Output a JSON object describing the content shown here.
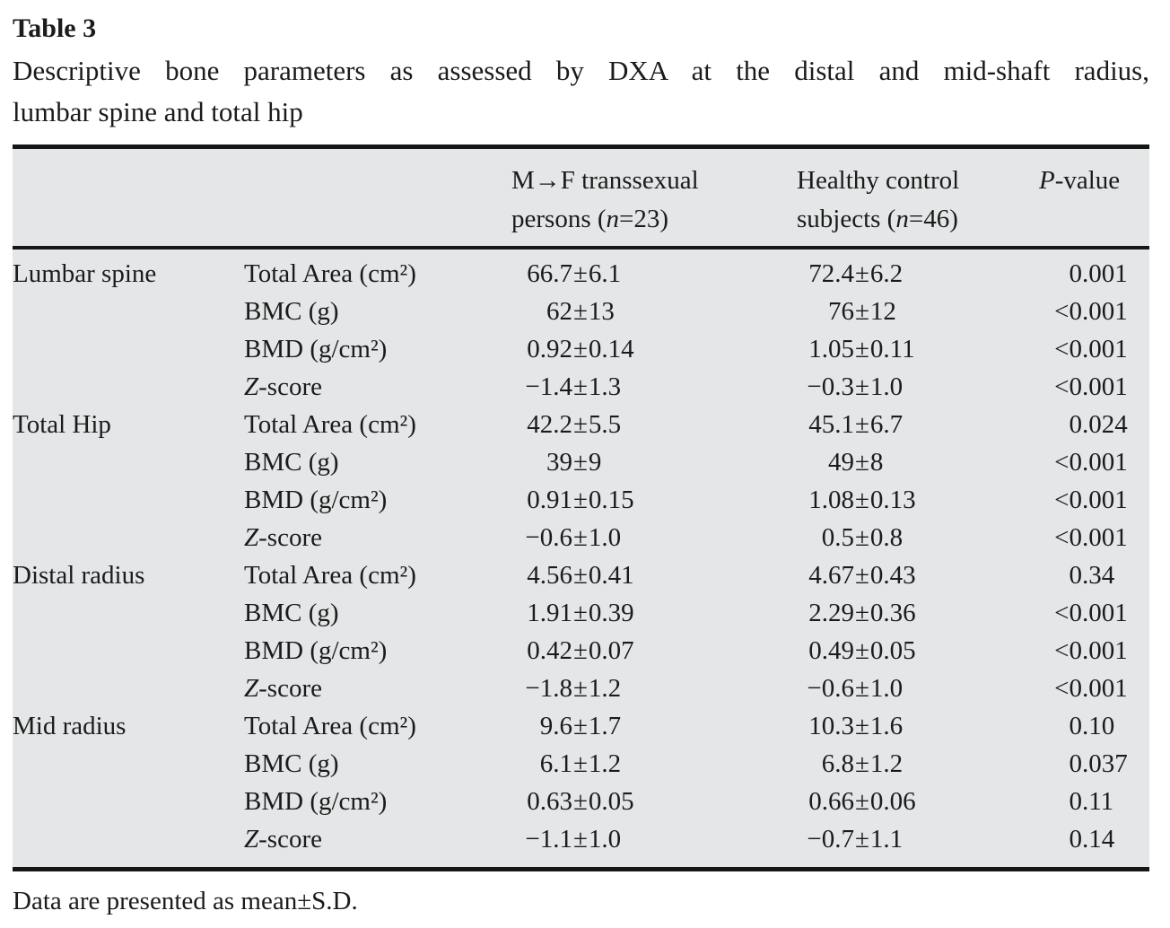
{
  "title": "Table 3",
  "caption_line1": "Descriptive bone parameters as assessed by DXA at the distal and mid-shaft radius,",
  "caption_line2": "lumbar spine and total hip",
  "header": {
    "col_mf": {
      "line1": "M→F transsexual",
      "line2_pre": "persons (",
      "n": "n",
      "line2_post": "=23)"
    },
    "col_hc": {
      "line1": "Healthy control",
      "line2_pre": "subjects (",
      "n": "n",
      "line2_post": "=46)"
    },
    "col_p": {
      "italic": "P",
      "rest": "-value"
    }
  },
  "rows": [
    {
      "region": "Lumbar spine",
      "param_i": "",
      "param": "Total Area (cm²)",
      "mf": "66.7±6.1",
      "hc": "72.4±6.2",
      "p": "0.001"
    },
    {
      "region": "",
      "param_i": "",
      "param": "BMC (g)",
      "mf": "62±13",
      "hc": "76±12",
      "p": "<0.001"
    },
    {
      "region": "",
      "param_i": "",
      "param": "BMD (g/cm²)",
      "mf": "0.92±0.14",
      "hc": "1.05±0.11",
      "p": "<0.001"
    },
    {
      "region": "",
      "param_i": "Z",
      "param": "-score",
      "mf": "−1.4±1.3",
      "hc": "−0.3±1.0",
      "p": "<0.001"
    },
    {
      "region": "Total Hip",
      "param_i": "",
      "param": "Total Area (cm²)",
      "mf": "42.2±5.5",
      "hc": "45.1±6.7",
      "p": "0.024"
    },
    {
      "region": "",
      "param_i": "",
      "param": "BMC (g)",
      "mf": "39±9",
      "hc": "49±8",
      "p": "<0.001"
    },
    {
      "region": "",
      "param_i": "",
      "param": "BMD (g/cm²)",
      "mf": "0.91±0.15",
      "hc": "1.08±0.13",
      "p": "<0.001"
    },
    {
      "region": "",
      "param_i": "Z",
      "param": "-score",
      "mf": "−0.6±1.0",
      "hc": "0.5±0.8",
      "p": "<0.001"
    },
    {
      "region": "Distal radius",
      "param_i": "",
      "param": "Total Area (cm²)",
      "mf": "4.56±0.41",
      "hc": "4.67±0.43",
      "p": "0.34"
    },
    {
      "region": "",
      "param_i": "",
      "param": "BMC (g)",
      "mf": "1.91±0.39",
      "hc": "2.29±0.36",
      "p": "<0.001"
    },
    {
      "region": "",
      "param_i": "",
      "param": "BMD (g/cm²)",
      "mf": "0.42±0.07",
      "hc": "0.49±0.05",
      "p": "<0.001"
    },
    {
      "region": "",
      "param_i": "Z",
      "param": "-score",
      "mf": "−1.8±1.2",
      "hc": "−0.6±1.0",
      "p": "<0.001"
    },
    {
      "region": "Mid radius",
      "param_i": "",
      "param": "Total Area (cm²)",
      "mf": "9.6±1.7",
      "hc": "10.3±1.6",
      "p": "0.10"
    },
    {
      "region": "",
      "param_i": "",
      "param": "BMC (g)",
      "mf": "6.1±1.2",
      "hc": "6.8±1.2",
      "p": "0.037"
    },
    {
      "region": "",
      "param_i": "",
      "param": "BMD (g/cm²)",
      "mf": "0.63±0.05",
      "hc": "0.66±0.06",
      "p": "0.11"
    },
    {
      "region": "",
      "param_i": "Z",
      "param": "-score",
      "mf": "−1.1±1.0",
      "hc": "−0.7±1.1",
      "p": "0.14"
    }
  ],
  "footnote": "Data are presented as mean±S.D.",
  "colors": {
    "table_background": "#e5e6e7",
    "rule": "#161616",
    "text": "#1b1b1b",
    "page_background": "#ffffff"
  }
}
